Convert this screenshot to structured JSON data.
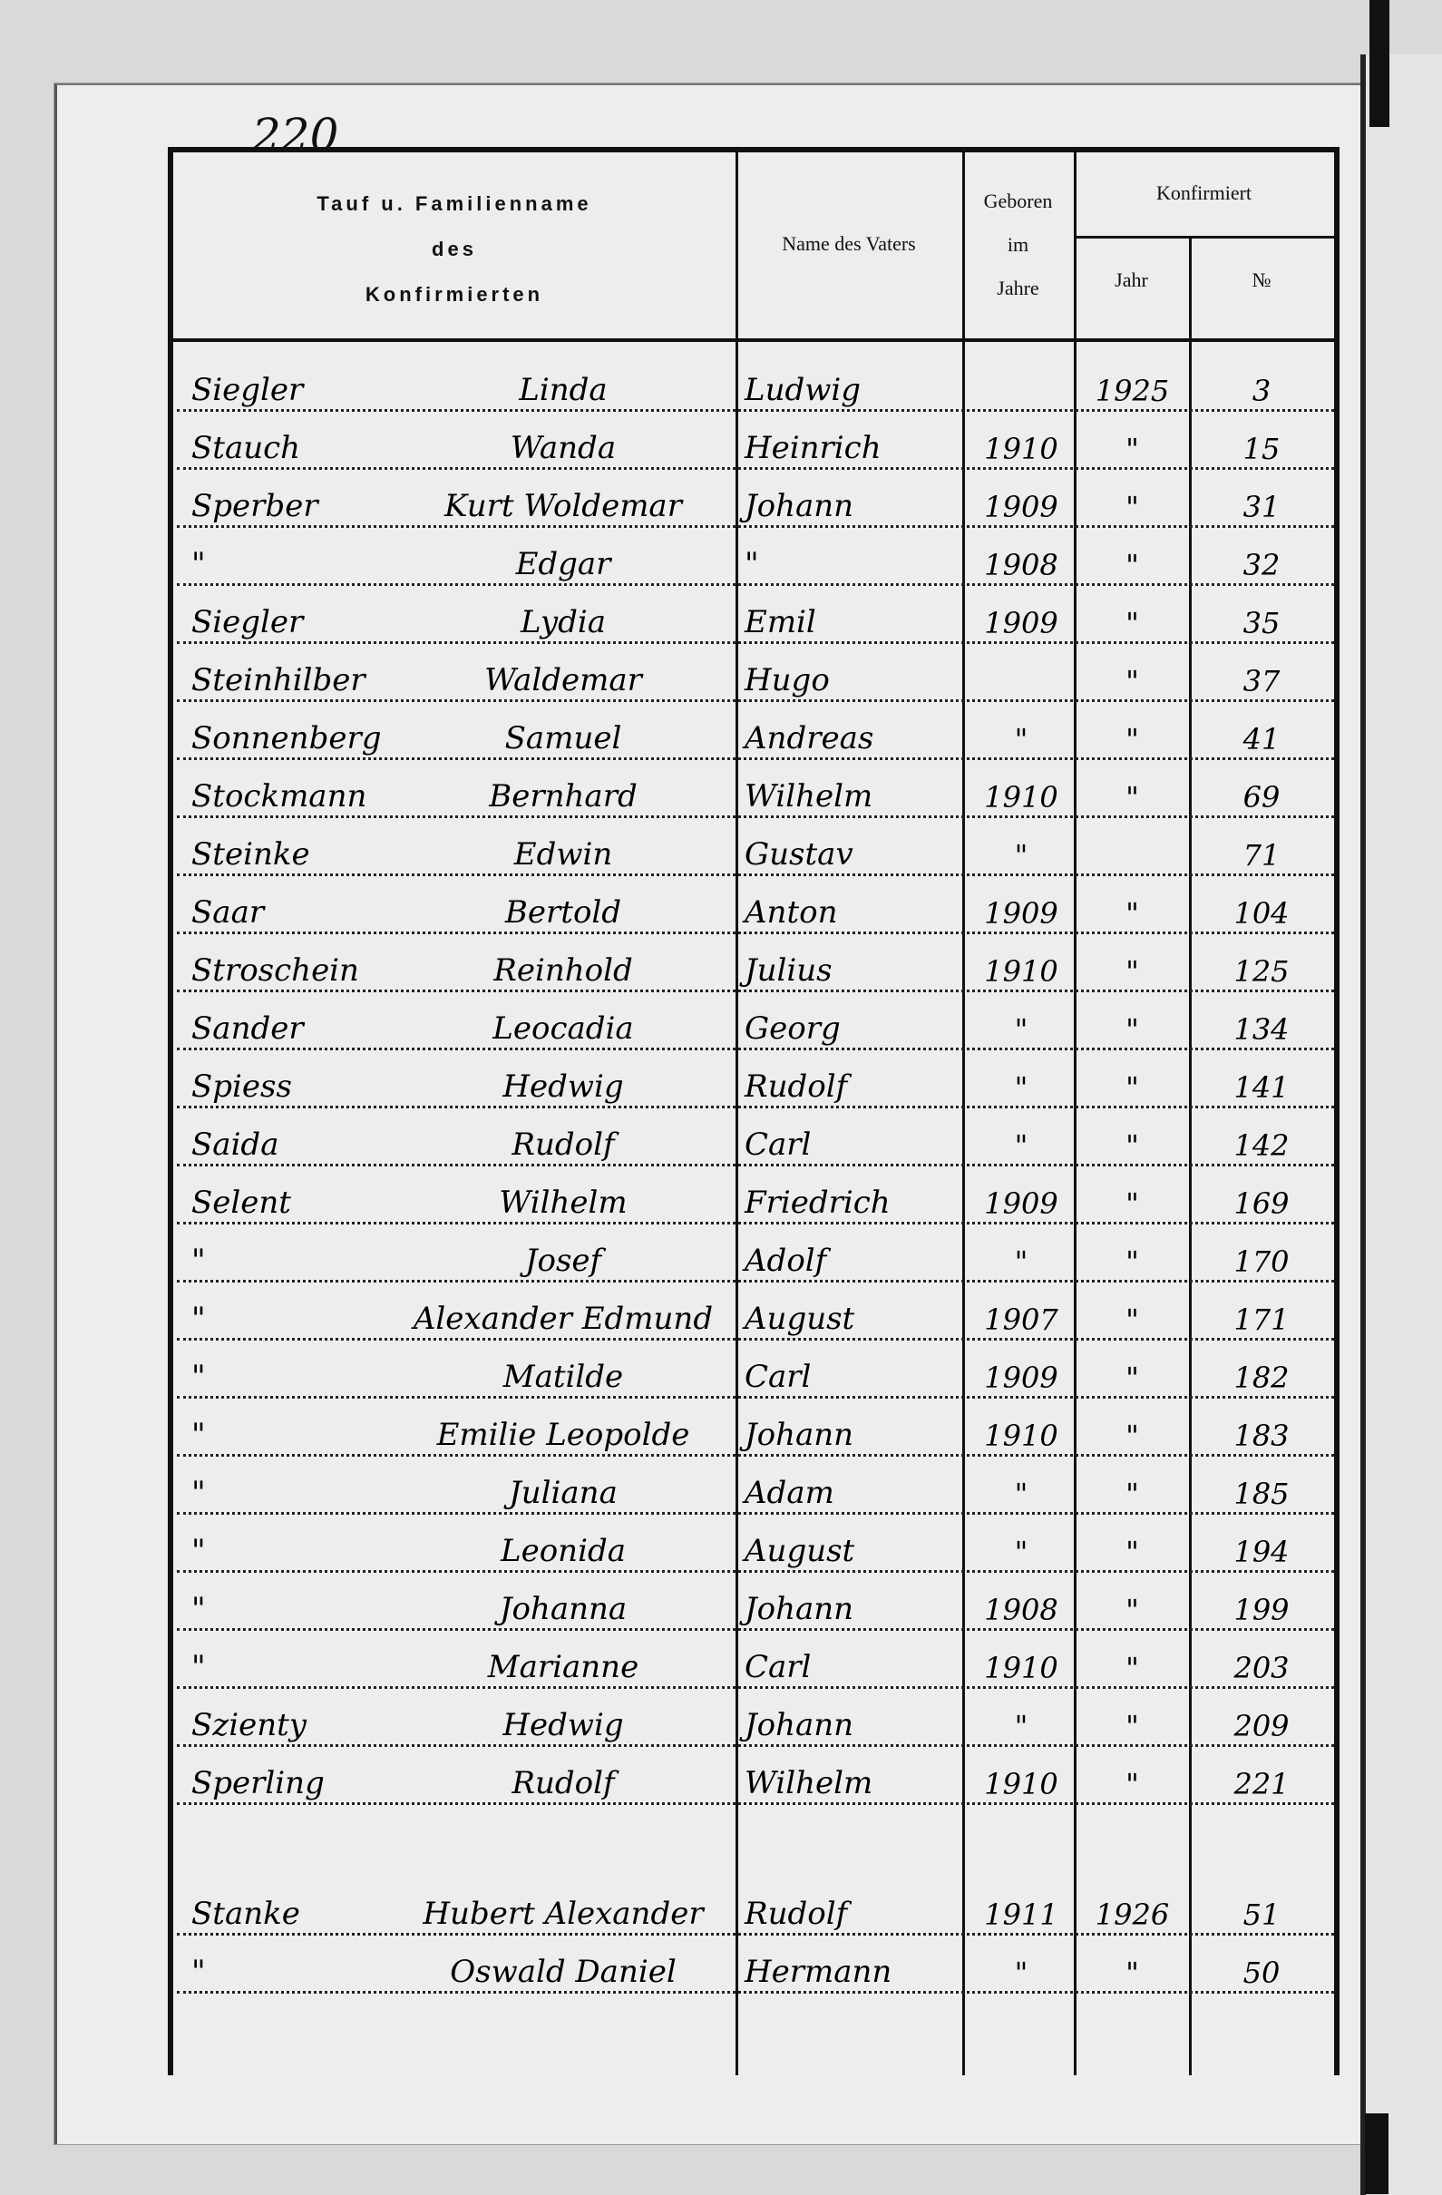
{
  "page_number": "220",
  "header": {
    "col_name_line1": "Tauf u. Familienname",
    "col_name_line2": "des",
    "col_name_line3": "Konfirmierten",
    "col_father": "Name des Vaters",
    "col_born_line1": "Geboren",
    "col_born_line2": "im",
    "col_born_line3": "Jahre",
    "col_confirmed": "Konfirmiert",
    "col_confirmed_year": "Jahr",
    "col_confirmed_no": "№"
  },
  "groups": [
    {
      "rows": [
        {
          "surname": "Siegler",
          "given": "Linda",
          "father": "Ludwig",
          "born": "",
          "conf_year": "1925",
          "no": "3"
        },
        {
          "surname": "Stauch",
          "given": "Wanda",
          "father": "Heinrich",
          "born": "1910",
          "conf_year": "\"",
          "no": "15"
        },
        {
          "surname": "Sperber",
          "given": "Kurt Woldemar",
          "father": "Johann",
          "born": "1909",
          "conf_year": "\"",
          "no": "31"
        },
        {
          "surname": "\"",
          "given": "Edgar",
          "father": "\"",
          "born": "1908",
          "conf_year": "\"",
          "no": "32"
        },
        {
          "surname": "Siegler",
          "given": "Lydia",
          "father": "Emil",
          "born": "1909",
          "conf_year": "\"",
          "no": "35"
        },
        {
          "surname": "Steinhilber",
          "given": "Waldemar",
          "father": "Hugo",
          "born": "",
          "conf_year": "\"",
          "no": "37"
        },
        {
          "surname": "Sonnenberg",
          "given": "Samuel",
          "father": "Andreas",
          "born": "\"",
          "conf_year": "\"",
          "no": "41"
        },
        {
          "surname": "Stockmann",
          "given": "Bernhard",
          "father": "Wilhelm",
          "born": "1910",
          "conf_year": "\"",
          "no": "69"
        },
        {
          "surname": "Steinke",
          "given": "Edwin",
          "father": "Gustav",
          "born": "\"",
          "conf_year": "",
          "no": "71"
        },
        {
          "surname": "Saar",
          "given": "Bertold",
          "father": "Anton",
          "born": "1909",
          "conf_year": "\"",
          "no": "104"
        },
        {
          "surname": "Stroschein",
          "given": "Reinhold",
          "father": "Julius",
          "born": "1910",
          "conf_year": "\"",
          "no": "125"
        },
        {
          "surname": "Sander",
          "given": "Leocadia",
          "father": "Georg",
          "born": "\"",
          "conf_year": "\"",
          "no": "134"
        },
        {
          "surname": "Spiess",
          "given": "Hedwig",
          "father": "Rudolf",
          "born": "\"",
          "conf_year": "\"",
          "no": "141"
        },
        {
          "surname": "Saida",
          "given": "Rudolf",
          "father": "Carl",
          "born": "\"",
          "conf_year": "\"",
          "no": "142"
        },
        {
          "surname": "Selent",
          "given": "Wilhelm",
          "father": "Friedrich",
          "born": "1909",
          "conf_year": "\"",
          "no": "169"
        },
        {
          "surname": "\"",
          "given": "Josef",
          "father": "Adolf",
          "born": "\"",
          "conf_year": "\"",
          "no": "170"
        },
        {
          "surname": "\"",
          "given": "Alexander Edmund",
          "father": "August",
          "born": "1907",
          "conf_year": "\"",
          "no": "171"
        },
        {
          "surname": "\"",
          "given": "Matilde",
          "father": "Carl",
          "born": "1909",
          "conf_year": "\"",
          "no": "182"
        },
        {
          "surname": "\"",
          "given": "Emilie Leopolde",
          "father": "Johann",
          "born": "1910",
          "conf_year": "\"",
          "no": "183"
        },
        {
          "surname": "\"",
          "given": "Juliana",
          "father": "Adam",
          "born": "\"",
          "conf_year": "\"",
          "no": "185"
        },
        {
          "surname": "\"",
          "given": "Leonida",
          "father": "August",
          "born": "\"",
          "conf_year": "\"",
          "no": "194"
        },
        {
          "surname": "\"",
          "given": "Johanna",
          "father": "Johann",
          "born": "1908",
          "conf_year": "\"",
          "no": "199"
        },
        {
          "surname": "\"",
          "given": "Marianne",
          "father": "Carl",
          "born": "1910",
          "conf_year": "\"",
          "no": "203"
        },
        {
          "surname": "Szienty",
          "given": "Hedwig",
          "father": "Johann",
          "born": "\"",
          "conf_year": "\"",
          "no": "209"
        },
        {
          "surname": "Sperling",
          "given": "Rudolf",
          "father": "Wilhelm",
          "born": "1910",
          "conf_year": "\"",
          "no": "221"
        }
      ]
    },
    {
      "rows": [
        {
          "surname": "Stanke",
          "given": "Hubert Alexander",
          "father": "Rudolf",
          "born": "1911",
          "conf_year": "1926",
          "no": "51"
        },
        {
          "surname": "\"",
          "given": "Oswald Daniel",
          "father": "Hermann",
          "born": "\"",
          "conf_year": "\"",
          "no": "50"
        }
      ]
    }
  ]
}
